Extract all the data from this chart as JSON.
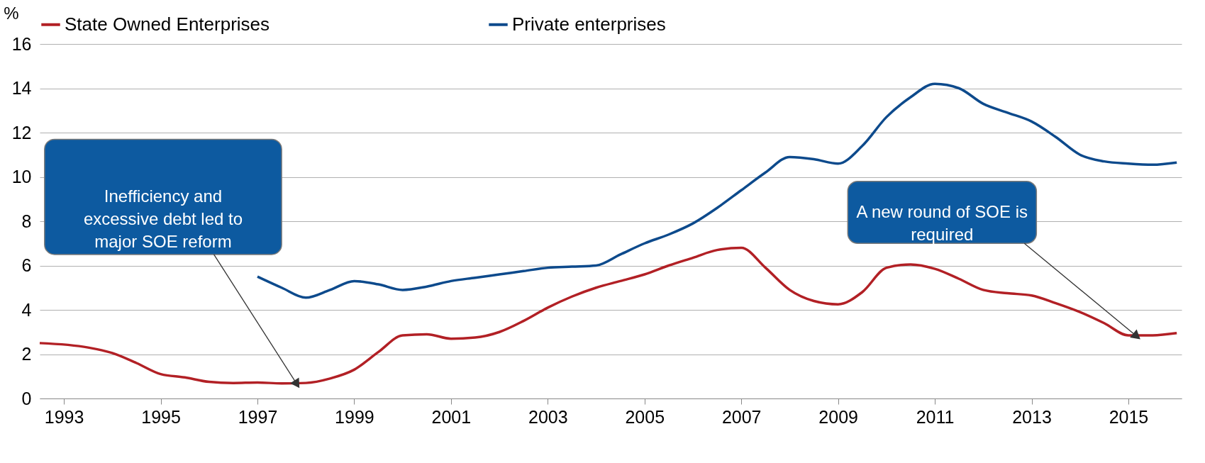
{
  "chart_data": {
    "type": "line",
    "ylabel": "%",
    "xlim": [
      1992.5,
      2016.1
    ],
    "ylim": [
      0,
      16
    ],
    "xticks": [
      1993,
      1995,
      1997,
      1999,
      2001,
      2003,
      2005,
      2007,
      2009,
      2011,
      2013,
      2015
    ],
    "yticks": [
      0,
      2,
      4,
      6,
      8,
      10,
      12,
      14,
      16
    ],
    "grid": "y",
    "legend": "top",
    "marker": "none",
    "line_style": "solid",
    "series": [
      {
        "name": "State Owned Enterprises",
        "color": "#b22025",
        "x": [
          1992.5,
          1993.5,
          1994,
          1994.5,
          1995,
          1995.5,
          1996,
          1996.5,
          1997,
          1997.5,
          1998,
          1998.5,
          1999,
          1999.5,
          2000,
          2000.5,
          2001,
          2001.5,
          2002,
          2002.5,
          2003,
          2003.5,
          2004,
          2004.5,
          2005,
          2005.5,
          2006,
          2006.5,
          2007,
          2007.5,
          2008,
          2008.5,
          2009,
          2009.5,
          2010,
          2010.5,
          2011,
          2011.5,
          2012,
          2012.5,
          2013,
          2013.5,
          2014,
          2014.5,
          2015,
          2015.5,
          2016
        ],
        "values": [
          2.5,
          2.3,
          2.05,
          1.6,
          1.1,
          0.95,
          0.75,
          0.7,
          0.72,
          0.68,
          0.7,
          0.9,
          1.3,
          2.1,
          2.85,
          2.9,
          2.7,
          2.75,
          3.0,
          3.5,
          4.1,
          4.6,
          5.0,
          5.3,
          5.6,
          6.0,
          6.35,
          6.7,
          6.8,
          5.9,
          4.9,
          4.4,
          4.25,
          4.8,
          5.9,
          6.05,
          5.85,
          5.4,
          4.9,
          4.75,
          4.65,
          4.3,
          3.9,
          3.4,
          2.85,
          2.85,
          2.95
        ]
      },
      {
        "name": "Private enterprises",
        "color": "#0d4a8c",
        "x": [
          1997,
          1997.5,
          1998,
          1998.5,
          1999,
          1999.5,
          2000,
          2000.5,
          2001,
          2001.5,
          2002,
          2002.5,
          2003,
          2003.5,
          2004,
          2004.5,
          2005,
          2005.5,
          2006,
          2006.5,
          2007,
          2007.5,
          2008,
          2008.5,
          2009,
          2009.5,
          2010,
          2010.5,
          2011,
          2011.5,
          2012,
          2012.5,
          2013,
          2013.5,
          2014,
          2014.5,
          2015,
          2015.5,
          2016
        ],
        "values": [
          5.5,
          5.0,
          4.55,
          4.9,
          5.3,
          5.15,
          4.9,
          5.05,
          5.3,
          5.45,
          5.6,
          5.75,
          5.9,
          5.95,
          6.0,
          6.5,
          7.0,
          7.4,
          7.9,
          8.6,
          9.4,
          10.2,
          10.9,
          10.8,
          10.6,
          11.4,
          12.7,
          13.6,
          14.2,
          14.0,
          13.3,
          12.9,
          12.5,
          11.8,
          11.0,
          10.7,
          10.6,
          10.55,
          10.65
        ]
      }
    ],
    "annotations": [
      {
        "text": "Inefficiency and excessive debt led to major SOE reform",
        "x": 1997.8,
        "y": 0.7
      },
      {
        "text": "A new round of SOE is required",
        "x": 2015.15,
        "y": 2.85
      }
    ]
  }
}
